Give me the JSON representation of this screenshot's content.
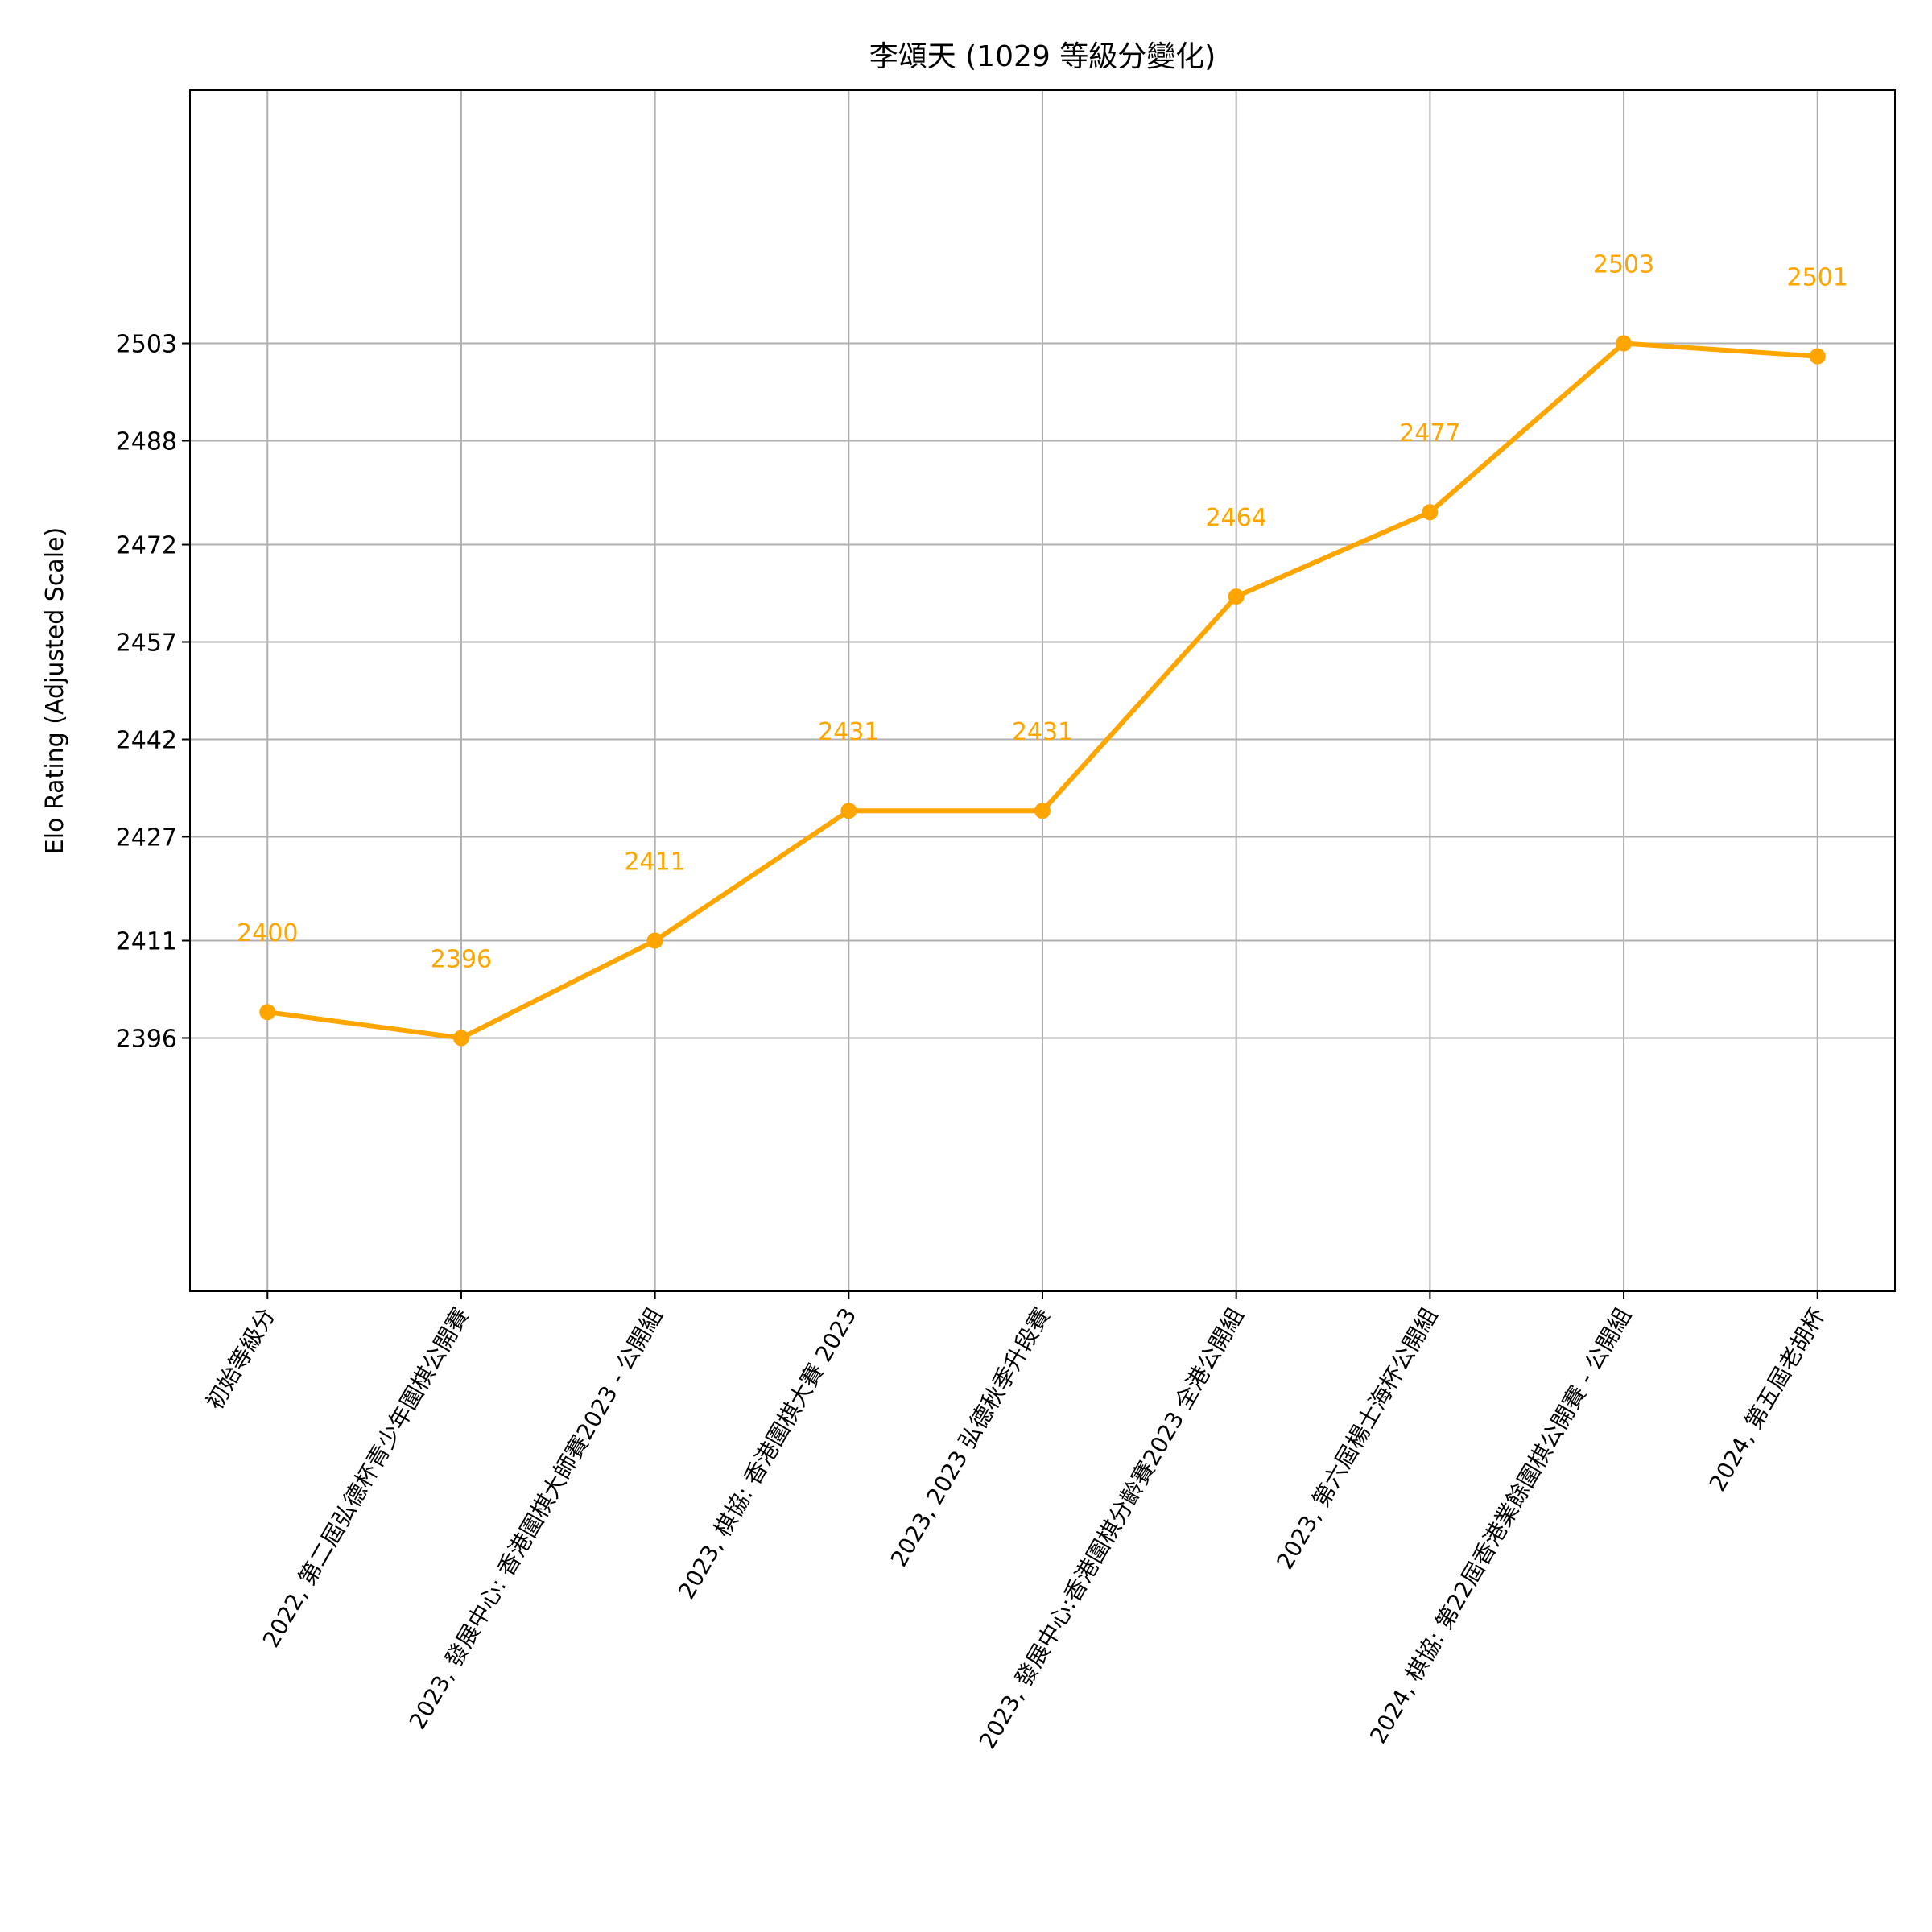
{
  "chart_data": {
    "type": "line",
    "title": "李頌天 (1029 等級分變化)",
    "y_label": "Elo Rating (Adjusted Scale)",
    "categories": [
      "初始等級分",
      "2022, 第二屆弘德杯青少年圍棋公開賽",
      "2023, 發展中心: 香港圍棋大師賽2023 - 公開組",
      "2023, 棋協: 香港圍棋大賽 2023",
      "2023, 2023 弘德秋季升段賽",
      "2023, 發展中心:香港圍棋分齡賽2023 全港公開組",
      "2023, 第六屆楊士海杯公開組",
      "2024, 棋協: 第22屆香港業餘圍棋公開賽 - 公開組",
      "2024, 第五屆老胡杯"
    ],
    "values": [
      2400,
      2396,
      2411,
      2431,
      2431,
      2464,
      2477,
      2503,
      2501
    ],
    "color": "#ffa500",
    "ylim": [
      2357,
      2542
    ],
    "yticks": [
      2396,
      2411,
      2427,
      2442,
      2457,
      2472,
      2488,
      2503
    ],
    "grid": true
  }
}
